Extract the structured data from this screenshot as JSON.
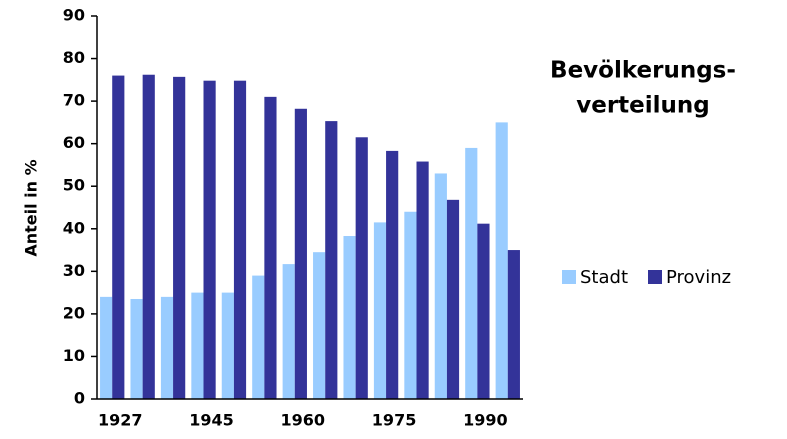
{
  "chart_data": {
    "type": "bar",
    "title": [
      "Bevölkerungs-",
      "verteilung"
    ],
    "y_label": "Anteil in %",
    "categories": [
      "1927",
      null,
      null,
      "1945",
      null,
      null,
      "1960",
      null,
      null,
      "1975",
      null,
      null,
      "1990",
      null
    ],
    "series": [
      {
        "name": "Stadt",
        "color": "#99ccff",
        "values": [
          24,
          23.5,
          24,
          25,
          25,
          29,
          31.7,
          34.5,
          38.3,
          41.5,
          44,
          53,
          59,
          65
        ]
      },
      {
        "name": "Provinz",
        "color": "#333399",
        "values": [
          76,
          76.2,
          75.7,
          74.8,
          74.8,
          71,
          68.2,
          65.3,
          61.5,
          58.3,
          55.8,
          46.8,
          41.2,
          35
        ]
      }
    ],
    "ylim": [
      0,
      90
    ],
    "yticks": [
      0,
      10,
      20,
      30,
      40,
      50,
      60,
      70,
      80,
      90
    ],
    "legend": "right"
  }
}
